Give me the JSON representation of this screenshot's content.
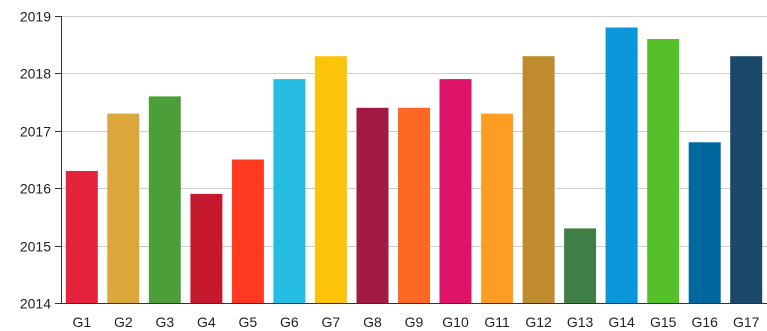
{
  "chart_data": {
    "type": "bar",
    "title": "",
    "xlabel": "",
    "ylabel": "",
    "categories": [
      "G1",
      "G2",
      "G3",
      "G4",
      "G5",
      "G6",
      "G7",
      "G8",
      "G9",
      "G10",
      "G11",
      "G12",
      "G13",
      "G14",
      "G15",
      "G16",
      "G17"
    ],
    "values": [
      2016.3,
      2017.3,
      2017.6,
      2015.9,
      2016.5,
      2017.9,
      2018.3,
      2017.4,
      2017.4,
      2017.9,
      2017.3,
      2018.3,
      2015.3,
      2018.8,
      2018.6,
      2016.8,
      2018.3
    ],
    "colors": [
      "#e5243b",
      "#dda63a",
      "#4c9f38",
      "#c5192d",
      "#ff3a21",
      "#26bde2",
      "#fcc30b",
      "#a21942",
      "#fd6925",
      "#dd1367",
      "#fd9d24",
      "#bf8b2e",
      "#3f7e44",
      "#0a97d9",
      "#56c02b",
      "#00689d",
      "#19486a"
    ],
    "yticks": [
      2014,
      2015,
      2016,
      2017,
      2018,
      2019
    ],
    "ylim": [
      2014,
      2019
    ],
    "grid": true,
    "legend": "none"
  }
}
